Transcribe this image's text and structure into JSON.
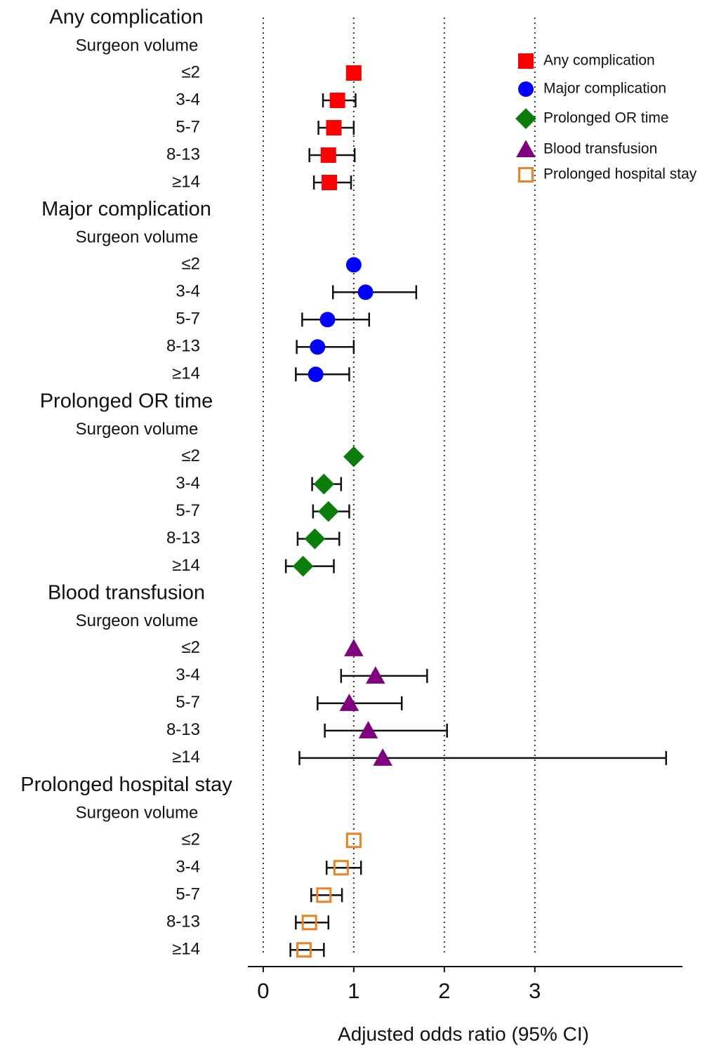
{
  "chart_data": {
    "type": "forest",
    "xlabel": "Adjusted odds ratio (95% CI)",
    "xlim": [
      -0.17,
      4.63
    ],
    "xticks": [
      0,
      1,
      2,
      3
    ],
    "grid": true,
    "legend": "top-right",
    "row_header": "Surgeon volume",
    "categories": [
      "≤2",
      "3-4",
      "5-7",
      "8-13",
      "≥14"
    ],
    "series": [
      {
        "name": "Any complication",
        "color": "#ff0000",
        "marker": "square",
        "values": [
          1.0,
          0.82,
          0.78,
          0.72,
          0.73
        ],
        "ci_low": [
          null,
          0.66,
          0.61,
          0.51,
          0.56
        ],
        "ci_high": [
          null,
          1.02,
          1.0,
          1.01,
          0.97
        ]
      },
      {
        "name": "Major complication",
        "color": "#0000ff",
        "marker": "circle",
        "values": [
          1.0,
          1.13,
          0.71,
          0.6,
          0.58
        ],
        "ci_low": [
          null,
          0.77,
          0.43,
          0.37,
          0.36
        ],
        "ci_high": [
          null,
          1.69,
          1.17,
          1.0,
          0.95
        ]
      },
      {
        "name": "Prolonged OR time",
        "color": "#0a7d0a",
        "marker": "diamond",
        "values": [
          1.0,
          0.67,
          0.72,
          0.57,
          0.44
        ],
        "ci_low": [
          null,
          0.54,
          0.55,
          0.38,
          0.25
        ],
        "ci_high": [
          null,
          0.86,
          0.95,
          0.84,
          0.78
        ]
      },
      {
        "name": "Blood transfusion",
        "color": "#800080",
        "marker": "triangle",
        "values": [
          1.0,
          1.24,
          0.95,
          1.16,
          1.32
        ],
        "ci_low": [
          null,
          0.86,
          0.6,
          0.68,
          0.4
        ],
        "ci_high": [
          null,
          1.81,
          1.53,
          2.03,
          4.45
        ]
      },
      {
        "name": "Prolonged hospital stay",
        "color": "#f08020",
        "marker": "open-square",
        "values": [
          1.0,
          0.86,
          0.67,
          0.51,
          0.45
        ],
        "ci_low": [
          null,
          0.7,
          0.53,
          0.36,
          0.3
        ],
        "ci_high": [
          null,
          1.08,
          0.87,
          0.72,
          0.67
        ]
      }
    ]
  }
}
